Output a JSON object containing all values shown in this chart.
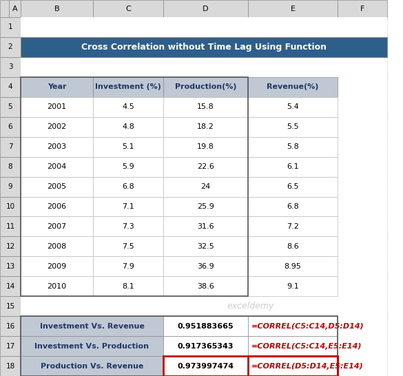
{
  "title": "Cross Correlation without Time Lag Using Function",
  "title_bg": "#2E5F8A",
  "title_fg": "#FFFFFF",
  "col_headers": [
    "Year",
    "Investment (%)",
    "Production(%)",
    "Revenue(%)"
  ],
  "col_header_bg": "#C0C8D4",
  "col_header_fg": "#1F3864",
  "rows": [
    [
      2001,
      4.5,
      15.8,
      5.4
    ],
    [
      2002,
      4.8,
      18.2,
      5.5
    ],
    [
      2003,
      5.1,
      19.8,
      5.8
    ],
    [
      2004,
      5.9,
      22.6,
      6.1
    ],
    [
      2005,
      6.8,
      24,
      6.5
    ],
    [
      2006,
      7.1,
      25.9,
      6.8
    ],
    [
      2007,
      7.3,
      31.6,
      7.2
    ],
    [
      2008,
      7.5,
      32.5,
      8.6
    ],
    [
      2009,
      7.9,
      36.9,
      8.95
    ],
    [
      2010,
      8.1,
      38.6,
      9.1
    ]
  ],
  "corr_labels": [
    "Investment Vs. Revenue",
    "Investment Vs. Production",
    "Production Vs. Revenue"
  ],
  "corr_values": [
    "0.951883665",
    "0.917365343",
    "0.973997474"
  ],
  "corr_formulas": [
    "=CORREL(C5:C14,D5:D14)",
    "=CORREL(C5:C14,E5:E14)",
    "=CORREL(D5:D14,E5:E14)"
  ],
  "corr_label_bg": "#C0C8D4",
  "corr_label_fg": "#1F3864",
  "corr_formula_fg": "#C00000",
  "col_letters": [
    "A",
    "B",
    "C",
    "D",
    "E",
    "F"
  ],
  "row_numbers": [
    "1",
    "2",
    "3",
    "4",
    "5",
    "6",
    "7",
    "8",
    "9",
    "10",
    "11",
    "12",
    "13",
    "14",
    "15",
    "16",
    "17",
    "18"
  ],
  "excel_header_bg": "#D9D9D9",
  "excel_header_fg": "#000000",
  "cell_border": "#B0B0B0",
  "watermark": "exceldemy"
}
